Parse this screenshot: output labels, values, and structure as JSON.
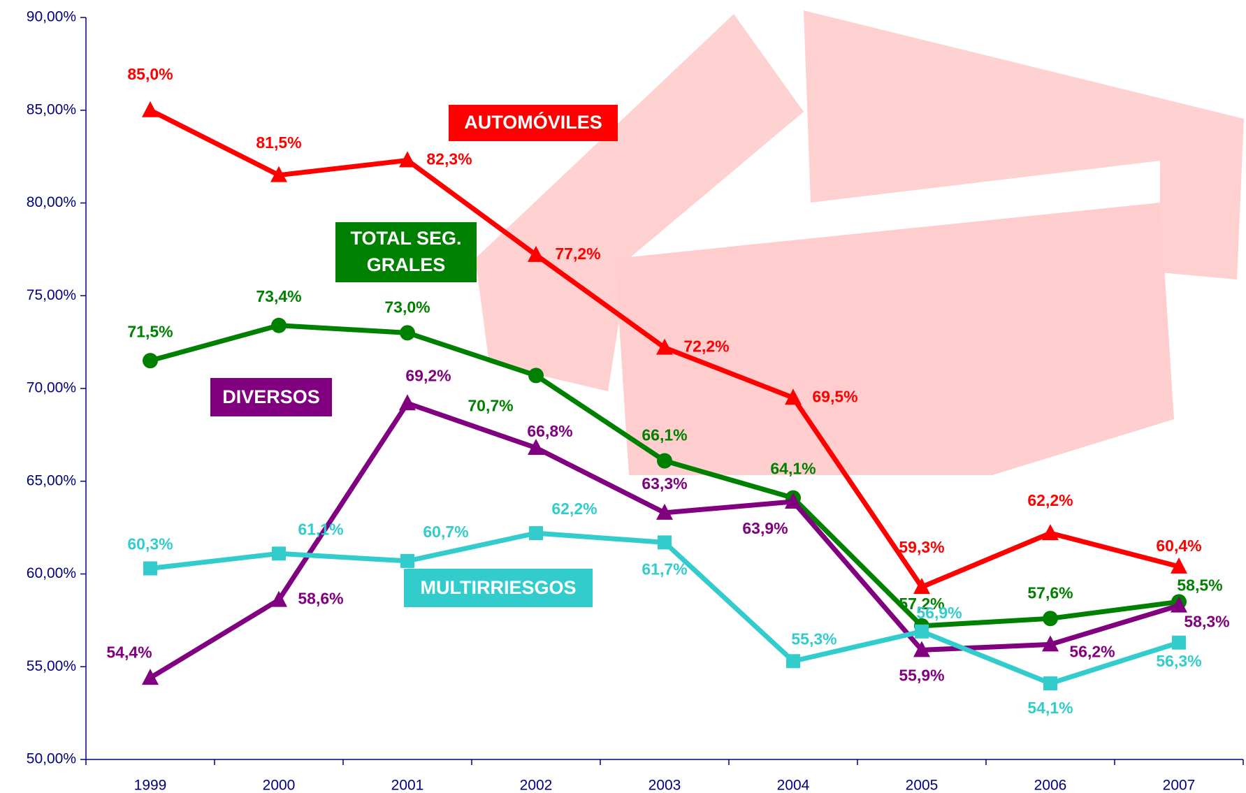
{
  "chart_data": {
    "type": "line",
    "categories": [
      "1999",
      "2000",
      "2001",
      "2002",
      "2003",
      "2004",
      "2005",
      "2006",
      "2007"
    ],
    "ylim": [
      50,
      90
    ],
    "yticks": [
      {
        "value": 50,
        "label": "50,00%"
      },
      {
        "value": 55,
        "label": "55,00%"
      },
      {
        "value": 60,
        "label": "60,00%"
      },
      {
        "value": 65,
        "label": "65,00%"
      },
      {
        "value": 70,
        "label": "70,00%"
      },
      {
        "value": 75,
        "label": "75,00%"
      },
      {
        "value": 80,
        "label": "80,00%"
      },
      {
        "value": 85,
        "label": "85,00%"
      },
      {
        "value": 90,
        "label": "90,00%"
      }
    ],
    "series": [
      {
        "name": "AUTOMÓVILES",
        "color": "#ff0000",
        "marker": "triangle",
        "values": [
          85.0,
          81.5,
          82.3,
          77.2,
          72.2,
          69.5,
          59.3,
          62.2,
          60.4
        ],
        "value_labels": [
          "85,0%",
          "81,5%",
          "82,3%",
          "77,2%",
          "72,2%",
          "69,5%",
          "59,3%",
          "62,2%",
          "60,4%"
        ]
      },
      {
        "name": "TOTAL SEG. GRALES",
        "color": "#008000",
        "marker": "circle",
        "values": [
          71.5,
          73.4,
          73.0,
          70.7,
          66.1,
          64.1,
          57.2,
          57.6,
          58.5
        ],
        "value_labels": [
          "71,5%",
          "73,4%",
          "73,0%",
          "70,7%",
          "66,1%",
          "64,1%",
          "57,2%",
          "57,6%",
          "58,5%"
        ]
      },
      {
        "name": "DIVERSOS",
        "color": "#800080",
        "marker": "triangle",
        "values": [
          54.4,
          58.6,
          69.2,
          66.8,
          63.3,
          63.9,
          55.9,
          56.2,
          58.3
        ],
        "value_labels": [
          "54,4%",
          "58,6%",
          "69,2%",
          "66,8%",
          "63,3%",
          "63,9%",
          "55,9%",
          "56,2%",
          "58,3%"
        ]
      },
      {
        "name": "MULTIRRIESGOS",
        "color": "#33cccc",
        "marker": "square",
        "values": [
          60.3,
          61.1,
          60.7,
          62.2,
          61.7,
          55.3,
          56.9,
          54.1,
          56.3
        ],
        "value_labels": [
          "60,3%",
          "61,1%",
          "60,7%",
          "62,2%",
          "61,7%",
          "55,3%",
          "56,9%",
          "54,1%",
          "56,3%"
        ]
      }
    ]
  }
}
